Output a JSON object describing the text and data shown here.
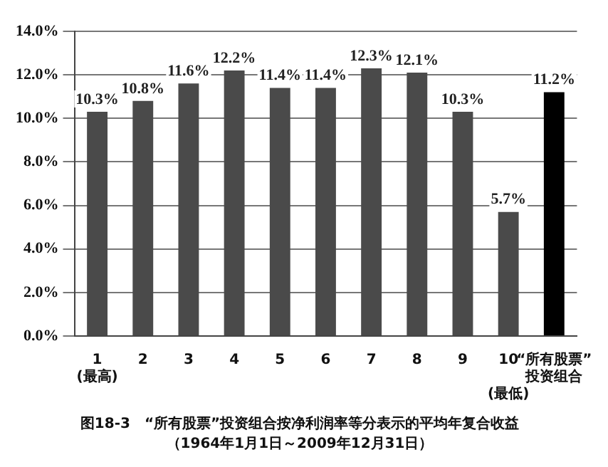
{
  "chart_data": {
    "type": "bar",
    "title": "图18-3　“所有股票”投资组合按净利润率等分表示的平均年复合收益",
    "subtitle": "（1964年1月1日～2009年12月31日）",
    "categories": [
      "1\n(最高)",
      "2",
      "3",
      "4",
      "5",
      "6",
      "7",
      "8",
      "9",
      "10\n\n(最低)",
      "“所有股票”\n投资组合"
    ],
    "values": [
      10.3,
      10.8,
      11.6,
      12.2,
      11.4,
      11.4,
      12.3,
      12.1,
      10.3,
      5.7,
      11.2
    ],
    "colors": [
      "#4a4a4a",
      "#4a4a4a",
      "#4a4a4a",
      "#4a4a4a",
      "#4a4a4a",
      "#4a4a4a",
      "#4a4a4a",
      "#4a4a4a",
      "#4a4a4a",
      "#4a4a4a",
      "#000000"
    ],
    "value_labels": [
      "10.3%",
      "10.8%",
      "11.6%",
      "12.2%",
      "11.4%",
      "11.4%",
      "12.3%",
      "12.1%",
      "10.3%",
      "5.7%",
      "11.2%"
    ],
    "ylim": [
      0,
      14
    ],
    "yticks": [
      {
        "value": 0,
        "label": "0.0%"
      },
      {
        "value": 2,
        "label": "2.0%"
      },
      {
        "value": 4,
        "label": "4.0%"
      },
      {
        "value": 6,
        "label": "6.0%"
      },
      {
        "value": 8,
        "label": "8.0%"
      },
      {
        "value": 10,
        "label": "10.0%"
      },
      {
        "value": 12,
        "label": "12.0%"
      },
      {
        "value": 14,
        "label": "14.0%"
      }
    ],
    "grid": "y"
  }
}
